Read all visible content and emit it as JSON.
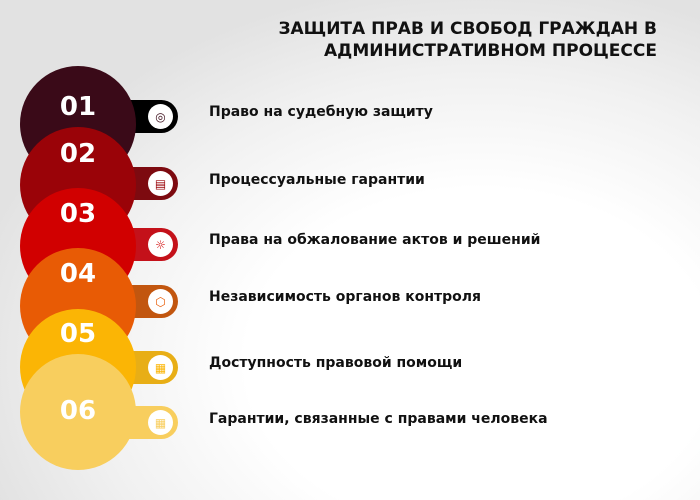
{
  "title": {
    "line1": "ЗАЩИТА ПРАВ И СВОБОД ГРАЖДАН В",
    "line2": "АДМИНИСТРАТИВНОМ ПРОЦЕССЕ"
  },
  "items": [
    {
      "num": "01",
      "label": "Право на судебную защиту",
      "color": "#3a0a18",
      "tab": "#000000",
      "icon": "rings-icon",
      "glyph": "◎"
    },
    {
      "num": "02",
      "label": "Процессуальные гарантии",
      "color": "#9a0308",
      "tab": "#7d0a10",
      "icon": "document-icon",
      "glyph": "▤"
    },
    {
      "num": "03",
      "label": "Права на обжалование актов и решений",
      "color": "#d10000",
      "tab": "#c4111a",
      "icon": "hand-idea-icon",
      "glyph": "☼"
    },
    {
      "num": "04",
      "label": "Независимость органов контроля",
      "color": "#e85b05",
      "tab": "#c2560f",
      "icon": "cube-icon",
      "glyph": "⬡"
    },
    {
      "num": "05",
      "label": "Доступность правовой помощи",
      "color": "#fbb505",
      "tab": "#e8ae16",
      "icon": "clipboard-icon",
      "glyph": "▦"
    },
    {
      "num": "06",
      "label": "Гарантии, связанные с правами человека",
      "color": "#f8ce5e",
      "tab": "#f8ce5e",
      "icon": "clipboard-icon",
      "glyph": "▦"
    }
  ]
}
